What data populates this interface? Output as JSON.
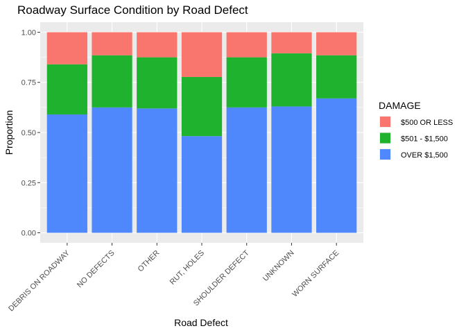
{
  "chart_data": {
    "type": "bar",
    "stacked": true,
    "title": "Roadway Surface Condition by Road Defect",
    "xlabel": "Road Defect",
    "ylabel": "Proportion",
    "ylim": [
      0,
      1
    ],
    "yticks": [
      "0.00",
      "0.25",
      "0.50",
      "0.75",
      "1.00"
    ],
    "categories": [
      "DEBRIS ON ROADWAY",
      "NO DEFECTS",
      "OTHER",
      "RUT, HOLES",
      "SHOULDER DEFECT",
      "UNKNOWN",
      "WORN SURFACE"
    ],
    "legend_title": "DAMAGE",
    "legend_position": "right",
    "grid": true,
    "series": [
      {
        "name": "$500 OR LESS",
        "color": "#F8766D",
        "values": [
          0.16,
          0.115,
          0.125,
          0.223,
          0.125,
          0.105,
          0.115
        ]
      },
      {
        "name": "$501 - $1,500",
        "color": "#1EB22F",
        "values": [
          0.25,
          0.26,
          0.255,
          0.295,
          0.25,
          0.265,
          0.215
        ]
      },
      {
        "name": "OVER $1,500",
        "color": "#4F88FC",
        "values": [
          0.59,
          0.625,
          0.62,
          0.482,
          0.625,
          0.63,
          0.67
        ]
      }
    ]
  }
}
